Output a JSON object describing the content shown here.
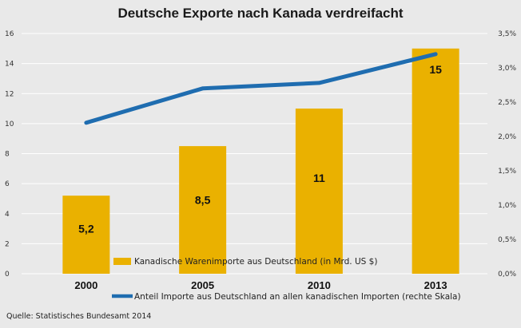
{
  "chart_data": {
    "type": "bar",
    "title": "Deutsche Exporte nach Kanada verdreifacht",
    "categories": [
      "2000",
      "2005",
      "2010",
      "2013"
    ],
    "series": [
      {
        "name": "Kanadische Warenimporte aus Deutschland (in Mrd. US $)",
        "type": "bar",
        "axis": "left",
        "values": [
          5.2,
          8.5,
          11,
          15
        ],
        "labels": [
          "5,2",
          "8,5",
          "11",
          "15"
        ]
      },
      {
        "name": "Anteil Importe aus Deutschland an allen kanadischen Importen (rechte Skala)",
        "type": "line",
        "axis": "right",
        "values": [
          2.2,
          2.7,
          2.78,
          3.2
        ]
      }
    ],
    "y_left": {
      "ticks": [
        0,
        2,
        4,
        6,
        8,
        10,
        12,
        14,
        16
      ],
      "tick_labels": [
        "0",
        "2",
        "4",
        "6",
        "8",
        "10",
        "12",
        "14",
        "16"
      ],
      "ylim": [
        0,
        16
      ]
    },
    "y_right": {
      "ticks": [
        0,
        0.5,
        1,
        1.5,
        2,
        2.5,
        3,
        3.5
      ],
      "tick_labels": [
        "0,0%",
        "0,5%",
        "1,0%",
        "1,5%",
        "2,0%",
        "2,5%",
        "3,0%",
        "3,5%"
      ],
      "ylim": [
        0,
        3.5
      ]
    },
    "grid": true,
    "legend": "bottom",
    "colors": {
      "bar": "#eab100",
      "line": "#1f6db0",
      "grid": "#ffffff",
      "background": "#e9e9e9"
    }
  },
  "source": "Quelle: Statistisches Bundesamt 2014"
}
